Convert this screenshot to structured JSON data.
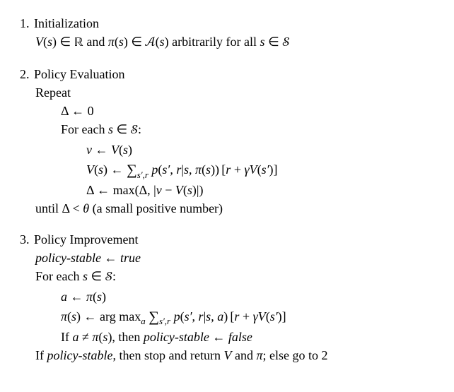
{
  "sec1": {
    "num": "1.",
    "title": "Initialization",
    "line1_a": "V",
    "line1_b": "(",
    "line1_c": "s",
    "line1_d": ") ∈ ",
    "line1_e": "ℝ",
    "line1_f": " and ",
    "line1_g": "π",
    "line1_h": "(",
    "line1_i": "s",
    "line1_j": ") ∈ ",
    "line1_k": "𝒜",
    "line1_l": "(",
    "line1_m": "s",
    "line1_n": ") arbitrarily for all ",
    "line1_o": "s",
    "line1_p": " ∈ ",
    "line1_q": "𝒮"
  },
  "sec2": {
    "num": "2.",
    "title": "Policy Evaluation",
    "repeat": "Repeat",
    "delta0_a": "Δ ← 0",
    "foreach_a": "For each ",
    "foreach_b": "s",
    "foreach_c": " ∈ ",
    "foreach_d": "𝒮",
    "foreach_e": ":",
    "v_a": "v",
    "v_b": " ← ",
    "v_c": "V",
    "v_d": "(",
    "v_e": "s",
    "v_f": ")",
    "vs_a": "V",
    "vs_b": "(",
    "vs_c": "s",
    "vs_d": ") ← ",
    "vs_sum": "∑",
    "vs_sub": "s′,r",
    "vs_e": " p",
    "vs_f": "(",
    "vs_g": "s′",
    "vs_h": ", ",
    "vs_i": "r",
    "vs_j": "|",
    "vs_k": "s",
    "vs_l": ", ",
    "vs_m": "π",
    "vs_n": "(",
    "vs_o": "s",
    "vs_p": "))",
    "vs_q": "[",
    "vs_r": "r",
    "vs_s": " + ",
    "vs_t": "γV",
    "vs_u": "(",
    "vs_v": "s′",
    "vs_w": ")",
    "vs_x": "]",
    "dm_a": "Δ ← max(Δ, |",
    "dm_b": "v",
    "dm_c": " − ",
    "dm_d": "V",
    "dm_e": "(",
    "dm_f": "s",
    "dm_g": ")|)",
    "until_a": "until Δ < ",
    "until_b": "θ",
    "until_c": "  (a small positive number)"
  },
  "sec3": {
    "num": "3.",
    "title": "Policy Improvement",
    "ps_a": "policy-stable",
    "ps_b": " ← ",
    "ps_c": "true",
    "foreach_a": "For each ",
    "foreach_b": "s",
    "foreach_c": " ∈ ",
    "foreach_d": "𝒮",
    "foreach_e": ":",
    "a_a": "a",
    "a_b": " ← ",
    "a_c": "π",
    "a_d": "(",
    "a_e": "s",
    "a_f": ")",
    "pi_a": "π",
    "pi_b": "(",
    "pi_c": "s",
    "pi_d": ") ← arg max",
    "pi_sub": "a",
    "pi_sum": "∑",
    "pi_sub2": "s′,r",
    "pi_e": " p",
    "pi_f": "(",
    "pi_g": "s′",
    "pi_h": ", ",
    "pi_i": "r",
    "pi_j": "|",
    "pi_k": "s",
    "pi_l": ", ",
    "pi_m": "a",
    "pi_n": ")",
    "pi_o": "[",
    "pi_p": "r",
    "pi_q": " + ",
    "pi_r": "γV",
    "pi_s": "(",
    "pi_t": "s′",
    "pi_u": ")",
    "pi_v": "]",
    "if_a": "If ",
    "if_b": "a",
    "if_c": " ≠ ",
    "if_d": "π",
    "if_e": "(",
    "if_f": "s",
    "if_g": "), then ",
    "if_h": "policy-stable",
    "if_i": " ← ",
    "if_j": "false",
    "end_a": "If ",
    "end_b": "policy-stable",
    "end_c": ", then stop and return ",
    "end_d": "V",
    "end_e": " and ",
    "end_f": "π",
    "end_g": "; else go to 2"
  }
}
